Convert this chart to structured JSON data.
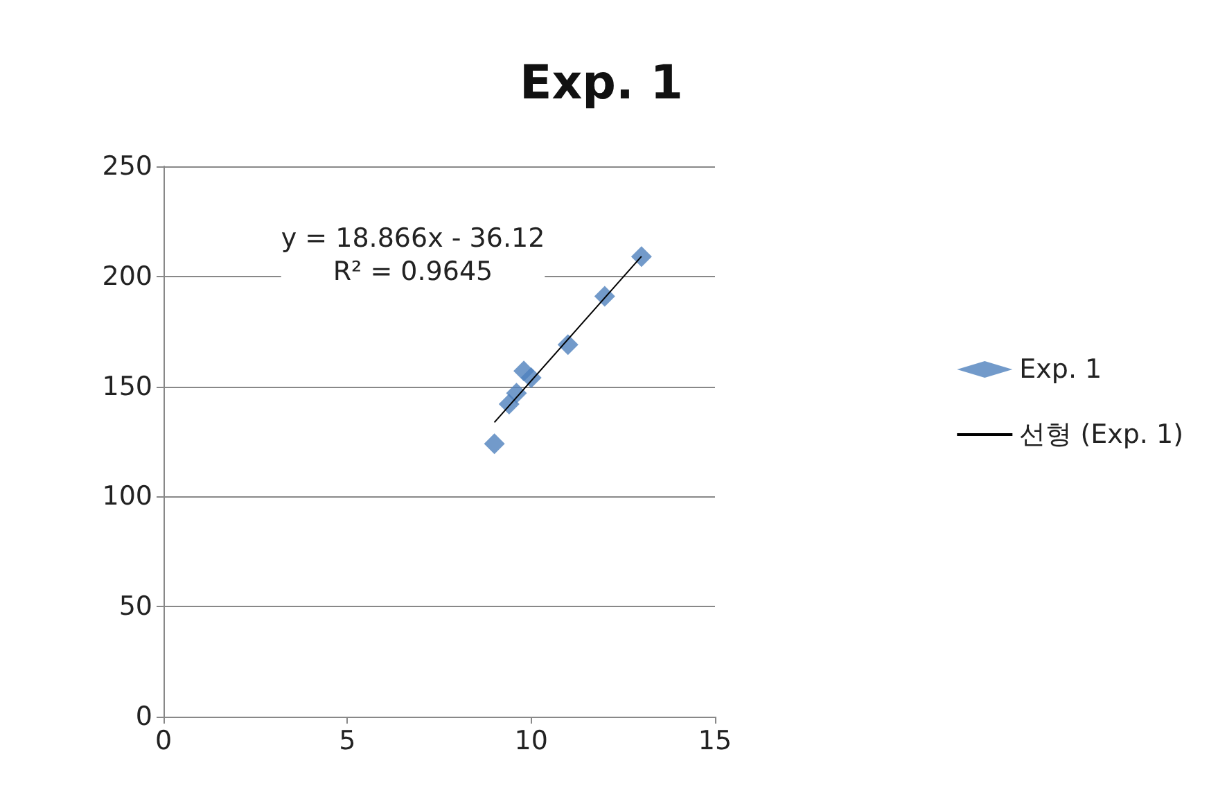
{
  "chart_data": {
    "type": "scatter",
    "title": "Exp. 1",
    "marker": "diamond",
    "grid": "y",
    "legend": "right",
    "xlim": [
      0,
      15
    ],
    "xticks": [
      0,
      5,
      10,
      15
    ],
    "ylim": [
      0,
      250
    ],
    "yticks": [
      0,
      50,
      100,
      150,
      200,
      250
    ],
    "annotations": [
      "y = 18.866x - 36.12\nR² = 0.9645"
    ],
    "series": [
      {
        "name": "Exp. 1",
        "color": "#4f81bd",
        "x": [
          9.0,
          9.4,
          9.6,
          9.8,
          10.0,
          11.0,
          12.0,
          13.0
        ],
        "values": [
          124,
          142,
          147,
          157,
          154,
          169,
          191,
          209
        ]
      },
      {
        "name": "선형 (Exp. 1)",
        "type": "line",
        "color": "#000000",
        "marker": "none",
        "x": [
          9,
          13
        ],
        "values": [
          133.7,
          209.1
        ]
      }
    ]
  }
}
